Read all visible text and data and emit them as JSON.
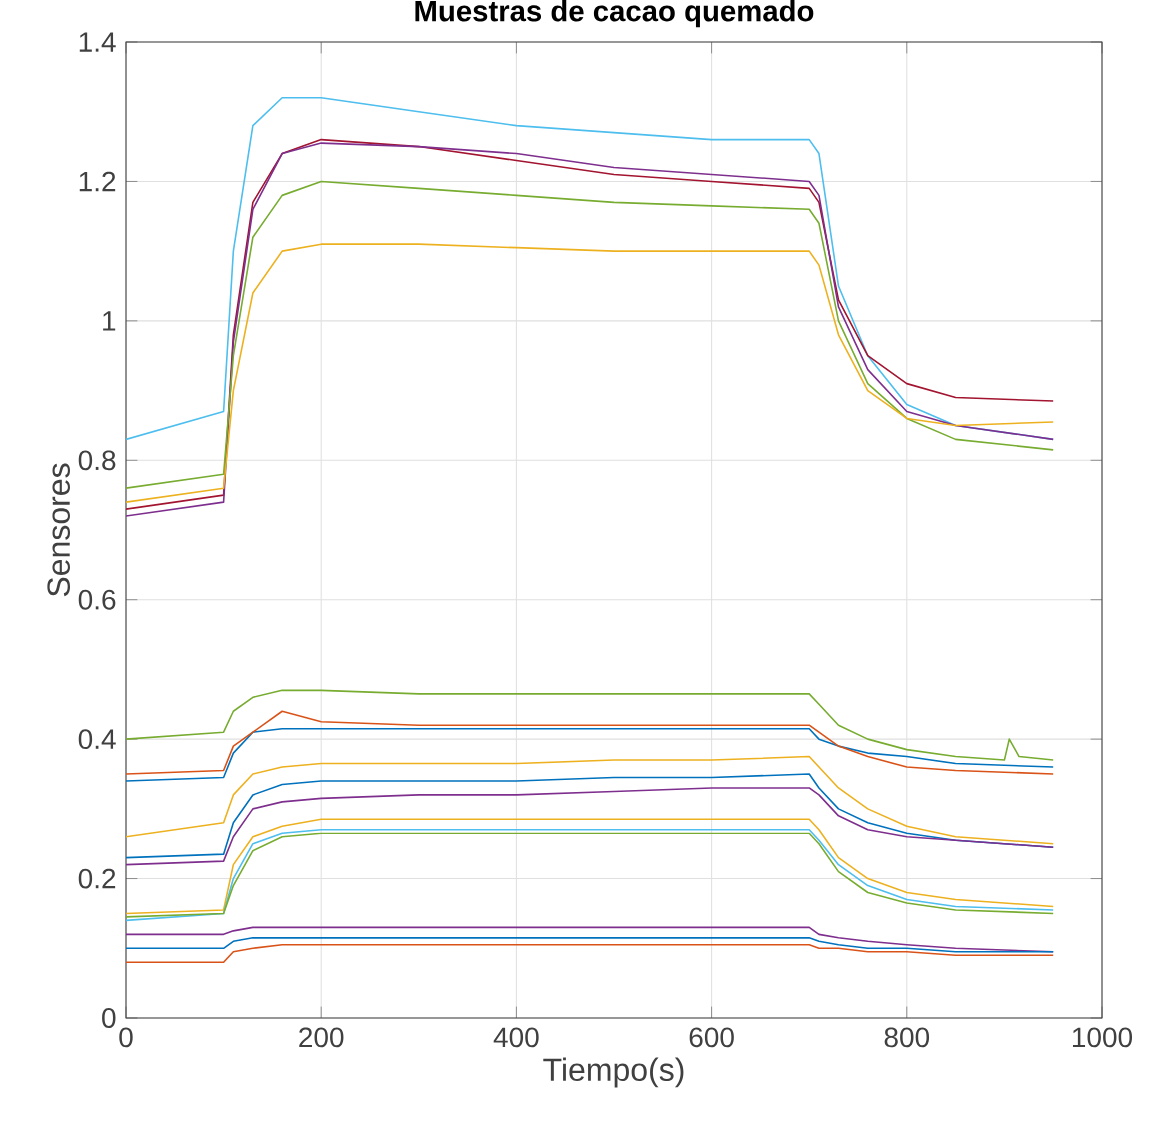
{
  "chart_data": {
    "type": "line",
    "title": "Muestras de cacao quemado",
    "xlabel": "Tiempo(s)",
    "ylabel": "Sensores",
    "x": [
      0,
      100,
      110,
      130,
      160,
      200,
      300,
      400,
      500,
      600,
      700,
      710,
      730,
      760,
      800,
      850,
      950
    ],
    "xlim": [
      0,
      1000
    ],
    "xticks": [
      0,
      200,
      400,
      600,
      800,
      1000
    ],
    "ylim": [
      0,
      1.4
    ],
    "yticks": [
      0,
      0.2,
      0.4,
      0.6,
      0.8,
      1,
      1.2,
      1.4
    ],
    "grid": true,
    "series": [
      {
        "color": "#4dbeee",
        "values": [
          0.83,
          0.87,
          1.1,
          1.28,
          1.32,
          1.32,
          1.3,
          1.28,
          1.27,
          1.26,
          1.26,
          1.24,
          1.05,
          0.95,
          0.88,
          0.85,
          0.83
        ]
      },
      {
        "color": "#a2142f",
        "values": [
          0.73,
          0.75,
          0.98,
          1.17,
          1.24,
          1.26,
          1.25,
          1.23,
          1.21,
          1.2,
          1.19,
          1.17,
          1.03,
          0.95,
          0.91,
          0.89,
          0.885
        ]
      },
      {
        "color": "#7e2f8e",
        "values": [
          0.72,
          0.74,
          0.97,
          1.16,
          1.24,
          1.255,
          1.25,
          1.24,
          1.22,
          1.21,
          1.2,
          1.18,
          1.02,
          0.93,
          0.87,
          0.85,
          0.83
        ]
      },
      {
        "color": "#77ac30",
        "values": [
          0.76,
          0.78,
          0.95,
          1.12,
          1.18,
          1.2,
          1.19,
          1.18,
          1.17,
          1.165,
          1.16,
          1.14,
          1.0,
          0.91,
          0.86,
          0.83,
          0.815
        ]
      },
      {
        "color": "#edb120",
        "values": [
          0.74,
          0.76,
          0.9,
          1.04,
          1.1,
          1.11,
          1.11,
          1.105,
          1.1,
          1.1,
          1.1,
          1.08,
          0.98,
          0.9,
          0.86,
          0.85,
          0.855
        ]
      },
      {
        "color": "#77ac30",
        "x": [
          0,
          100,
          110,
          130,
          160,
          200,
          300,
          400,
          500,
          600,
          700,
          710,
          730,
          760,
          800,
          850,
          900,
          905,
          915,
          950
        ],
        "values": [
          0.4,
          0.41,
          0.44,
          0.46,
          0.47,
          0.47,
          0.465,
          0.465,
          0.465,
          0.465,
          0.465,
          0.45,
          0.42,
          0.4,
          0.385,
          0.375,
          0.37,
          0.4,
          0.375,
          0.37
        ]
      },
      {
        "color": "#0072bd",
        "values": [
          0.34,
          0.345,
          0.38,
          0.41,
          0.415,
          0.415,
          0.415,
          0.415,
          0.415,
          0.415,
          0.415,
          0.4,
          0.39,
          0.38,
          0.375,
          0.365,
          0.36
        ]
      },
      {
        "color": "#d95319",
        "values": [
          0.35,
          0.355,
          0.39,
          0.41,
          0.44,
          0.425,
          0.42,
          0.42,
          0.42,
          0.42,
          0.42,
          0.41,
          0.39,
          0.375,
          0.36,
          0.355,
          0.35
        ]
      },
      {
        "color": "#edb120",
        "values": [
          0.26,
          0.28,
          0.32,
          0.35,
          0.36,
          0.365,
          0.365,
          0.365,
          0.37,
          0.37,
          0.375,
          0.36,
          0.33,
          0.3,
          0.275,
          0.26,
          0.25
        ]
      },
      {
        "color": "#0072bd",
        "values": [
          0.23,
          0.235,
          0.28,
          0.32,
          0.335,
          0.34,
          0.34,
          0.34,
          0.345,
          0.345,
          0.35,
          0.33,
          0.3,
          0.28,
          0.265,
          0.255,
          0.245
        ]
      },
      {
        "color": "#7e2f8e",
        "values": [
          0.22,
          0.225,
          0.26,
          0.3,
          0.31,
          0.315,
          0.32,
          0.32,
          0.325,
          0.33,
          0.33,
          0.32,
          0.29,
          0.27,
          0.26,
          0.255,
          0.245
        ]
      },
      {
        "color": "#edb120",
        "values": [
          0.15,
          0.155,
          0.22,
          0.26,
          0.275,
          0.285,
          0.285,
          0.285,
          0.285,
          0.285,
          0.285,
          0.27,
          0.23,
          0.2,
          0.18,
          0.17,
          0.16
        ]
      },
      {
        "color": "#4dbeee",
        "values": [
          0.14,
          0.15,
          0.2,
          0.25,
          0.265,
          0.27,
          0.27,
          0.27,
          0.27,
          0.27,
          0.27,
          0.255,
          0.22,
          0.19,
          0.17,
          0.16,
          0.155
        ]
      },
      {
        "color": "#77ac30",
        "values": [
          0.145,
          0.15,
          0.19,
          0.24,
          0.26,
          0.265,
          0.265,
          0.265,
          0.265,
          0.265,
          0.265,
          0.25,
          0.21,
          0.18,
          0.165,
          0.155,
          0.15
        ]
      },
      {
        "color": "#7e2f8e",
        "values": [
          0.12,
          0.12,
          0.125,
          0.13,
          0.13,
          0.13,
          0.13,
          0.13,
          0.13,
          0.13,
          0.13,
          0.12,
          0.115,
          0.11,
          0.105,
          0.1,
          0.095
        ]
      },
      {
        "color": "#0072bd",
        "values": [
          0.1,
          0.1,
          0.11,
          0.115,
          0.115,
          0.115,
          0.115,
          0.115,
          0.115,
          0.115,
          0.115,
          0.11,
          0.105,
          0.1,
          0.1,
          0.095,
          0.095
        ]
      },
      {
        "color": "#d95319",
        "values": [
          0.08,
          0.08,
          0.095,
          0.1,
          0.105,
          0.105,
          0.105,
          0.105,
          0.105,
          0.105,
          0.105,
          0.1,
          0.1,
          0.095,
          0.095,
          0.09,
          0.09
        ]
      }
    ]
  }
}
